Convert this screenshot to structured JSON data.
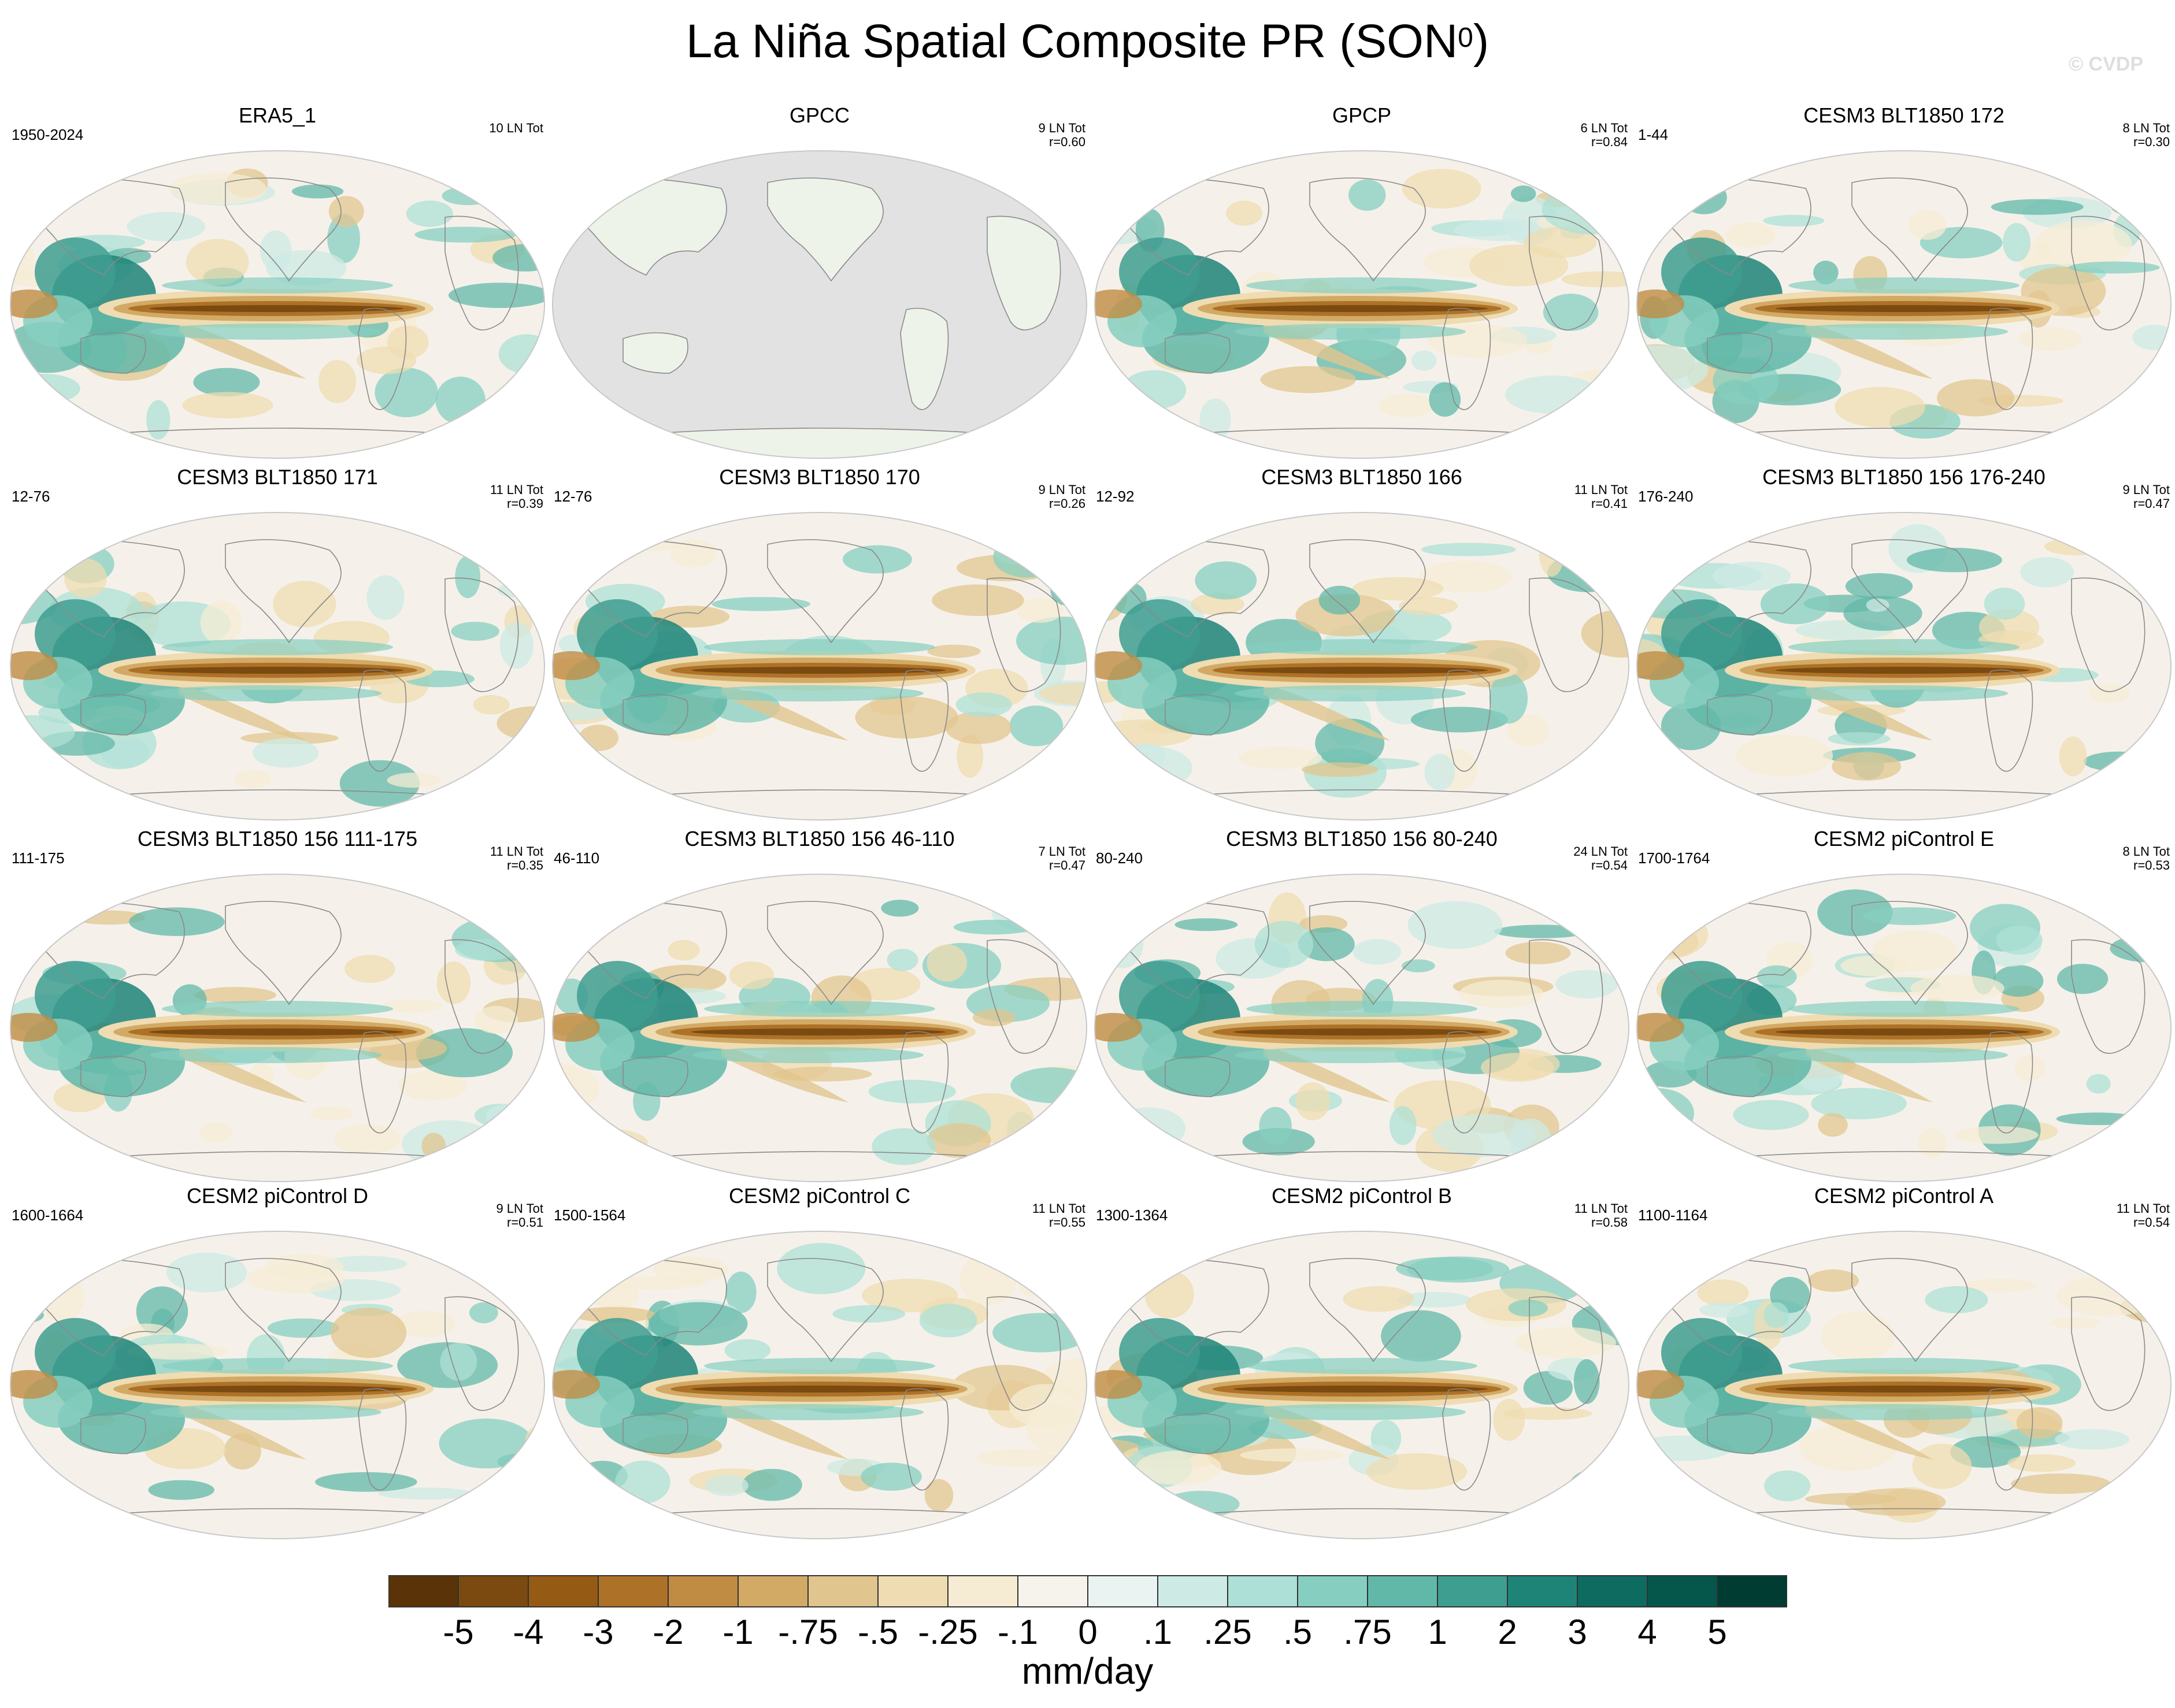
{
  "figure": {
    "title_main": "La Niña Spatial Composite PR (SON",
    "title_sup": "0",
    "title_close": ")",
    "watermark": "© CVDP",
    "units": "mm/day"
  },
  "chart_data": {
    "type": "heatmap",
    "title": "La Niña Spatial Composite PR (SON0)",
    "variable": "PR",
    "season": "SON0",
    "units": "mm/day",
    "colorbar": {
      "levels": [
        "-5",
        "-4",
        "-3",
        "-2",
        "-1",
        "-.75",
        "-.5",
        "-.25",
        "-.1",
        "0",
        ".1",
        ".25",
        ".5",
        ".75",
        "1",
        "2",
        "3",
        "4",
        "5"
      ],
      "colors": [
        "#5a3408",
        "#7a4a10",
        "#955a14",
        "#ad7127",
        "#c08c44",
        "#d2aa66",
        "#e1c58f",
        "#efdcb2",
        "#f6ecd4",
        "#f6f2ec",
        "#eaf3f1",
        "#cdeae4",
        "#ade0d6",
        "#86cfc0",
        "#62b8a8",
        "#3e9e90",
        "#1f8478",
        "#0d6b60",
        "#05574c",
        "#003c32"
      ]
    },
    "panels": [
      {
        "name": "ERA5_1",
        "years": "1950-2024",
        "events": "10 LN Tot",
        "r": "",
        "grey_ocean": false
      },
      {
        "name": "GPCC",
        "years": "",
        "events": "9 LN Tot",
        "r": "r=0.60",
        "grey_ocean": true
      },
      {
        "name": "GPCP",
        "years": "",
        "events": "6 LN Tot",
        "r": "r=0.84",
        "grey_ocean": false
      },
      {
        "name": "CESM3 BLT1850 172",
        "years": "1-44",
        "events": "8 LN Tot",
        "r": "r=0.30",
        "grey_ocean": false
      },
      {
        "name": "CESM3 BLT1850 171",
        "years": "12-76",
        "events": "11 LN Tot",
        "r": "r=0.39",
        "grey_ocean": false
      },
      {
        "name": "CESM3 BLT1850 170",
        "years": "12-76",
        "events": "9 LN Tot",
        "r": "r=0.26",
        "grey_ocean": false
      },
      {
        "name": "CESM3 BLT1850 166",
        "years": "12-92",
        "events": "11 LN Tot",
        "r": "r=0.41",
        "grey_ocean": false
      },
      {
        "name": "CESM3 BLT1850 156 176-240",
        "years": "176-240",
        "events": "9 LN Tot",
        "r": "r=0.47",
        "grey_ocean": false
      },
      {
        "name": "CESM3 BLT1850 156 111-175",
        "years": "111-175",
        "events": "11 LN Tot",
        "r": "r=0.35",
        "grey_ocean": false
      },
      {
        "name": "CESM3 BLT1850 156 46-110",
        "years": "46-110",
        "events": "7 LN Tot",
        "r": "r=0.47",
        "grey_ocean": false
      },
      {
        "name": "CESM3 BLT1850 156 80-240",
        "years": "80-240",
        "events": "24 LN Tot",
        "r": "r=0.54",
        "grey_ocean": false
      },
      {
        "name": "CESM2 piControl E",
        "years": "1700-1764",
        "events": "8 LN Tot",
        "r": "r=0.53",
        "grey_ocean": false
      },
      {
        "name": "CESM2 piControl D",
        "years": "1600-1664",
        "events": "9 LN Tot",
        "r": "r=0.51",
        "grey_ocean": false
      },
      {
        "name": "CESM2 piControl C",
        "years": "1500-1564",
        "events": "11 LN Tot",
        "r": "r=0.55",
        "grey_ocean": false
      },
      {
        "name": "CESM2 piControl B",
        "years": "1300-1364",
        "events": "11 LN Tot",
        "r": "r=0.58",
        "grey_ocean": false
      },
      {
        "name": "CESM2 piControl A",
        "years": "1100-1164",
        "events": "11 LN Tot",
        "r": "r=0.54",
        "grey_ocean": false
      }
    ]
  }
}
